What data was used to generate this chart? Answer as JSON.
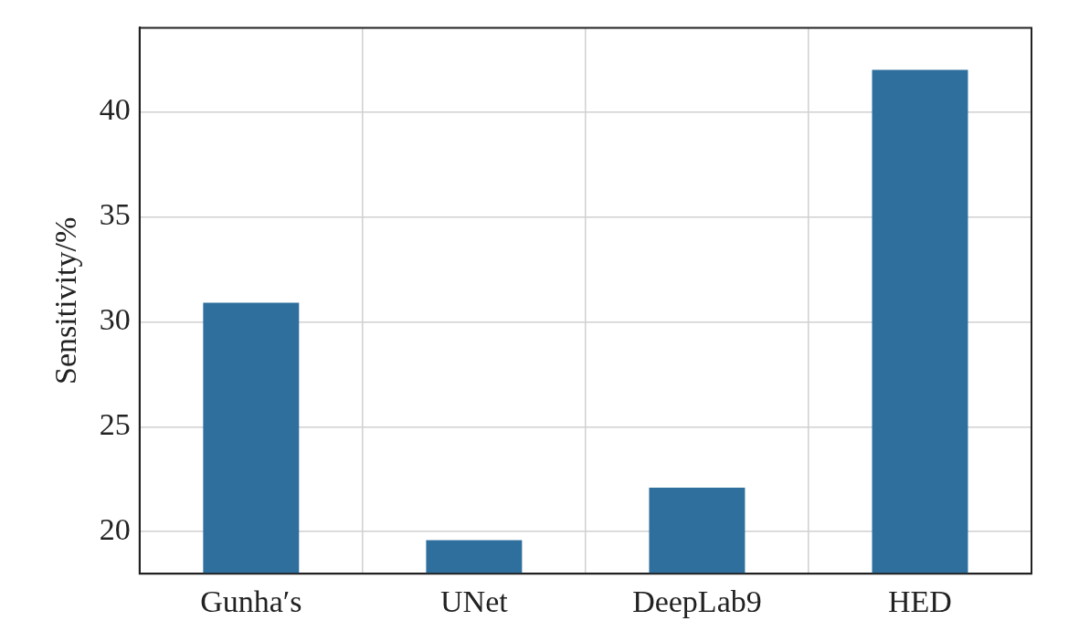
{
  "chart_data": {
    "type": "bar",
    "ylabel": "Sensitivity/%",
    "categories": [
      "Gunha′s",
      "UNet",
      "DeepLab9",
      "HED"
    ],
    "values": [
      30.9,
      19.6,
      22.1,
      42.0
    ],
    "color": "#2e6f9e",
    "ylim": [
      18,
      44
    ],
    "yticks": [
      20,
      25,
      30,
      35,
      40
    ],
    "grid": true,
    "legend": false
  }
}
